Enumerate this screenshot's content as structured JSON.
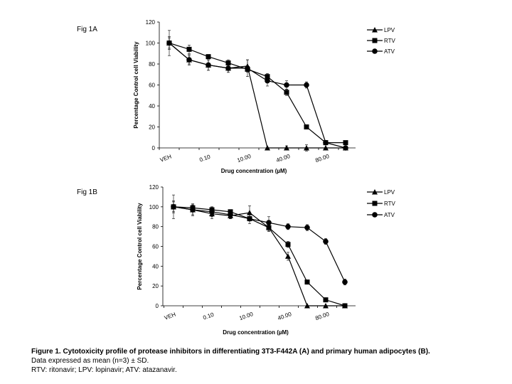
{
  "caption": {
    "title": "Figure 1. Cytotoxicity profile of protease inhibitors in differentiating 3T3-F442A (A) and primary human adipocytes (B).",
    "line2": "Data expressed as mean (n=3) ± SD.",
    "line3": "RTV: ritonavir; LPV: lopinavir; ATV: atazanavir."
  },
  "chart_data": [
    {
      "type": "line",
      "title": "Fig 1A",
      "xlabel": "Drug concentration (µM)",
      "ylabel": "Percentage Control cell Viability",
      "ylim": [
        0,
        120
      ],
      "yticks": [
        0,
        20,
        40,
        60,
        80,
        100,
        120
      ],
      "tick_labels": [
        "VEH",
        "0.10",
        "10.00",
        "40.00",
        "80.00"
      ],
      "tick_label_positions": [
        0,
        2,
        4,
        6,
        8
      ],
      "x_positions": [
        0,
        1,
        2,
        3,
        4,
        5,
        6,
        7,
        8,
        9
      ],
      "grid": false,
      "legend": "top-right",
      "series": [
        {
          "name": "LPV",
          "marker": "triangle",
          "values": [
            100,
            84,
            79,
            76,
            78,
            0,
            0,
            0,
            0,
            0
          ],
          "err": [
            5,
            5,
            5,
            4,
            6,
            0,
            2,
            3,
            0,
            0
          ]
        },
        {
          "name": "RTV",
          "marker": "square",
          "values": [
            100,
            94,
            87,
            81,
            75,
            68,
            53,
            20,
            5,
            5
          ],
          "err": [
            6,
            4,
            2,
            3,
            2,
            3,
            3,
            1,
            1,
            1
          ]
        },
        {
          "name": "ATV",
          "marker": "circle",
          "values": [
            100,
            84,
            79,
            76,
            76,
            64,
            60,
            60,
            5,
            0
          ],
          "err": [
            12,
            4,
            5,
            4,
            8,
            5,
            4,
            3,
            1,
            0
          ]
        }
      ]
    },
    {
      "type": "line",
      "title": "Fig 1B",
      "xlabel": "Drug concentration (µM)",
      "ylabel": "Percentage Control cell Viability",
      "ylim": [
        0,
        120
      ],
      "yticks": [
        0,
        20,
        40,
        60,
        80,
        100,
        120
      ],
      "tick_labels": [
        "VEH",
        "0.10",
        "10.00",
        "40.00",
        "80.00"
      ],
      "tick_label_positions": [
        0,
        2,
        4,
        6,
        8
      ],
      "x_positions": [
        0,
        1,
        2,
        3,
        4,
        5,
        6,
        7,
        8,
        9
      ],
      "grid": false,
      "legend": "top-right",
      "series": [
        {
          "name": "LPV",
          "marker": "triangle",
          "values": [
            100,
            97,
            93,
            91,
            94,
            79,
            50,
            0,
            0,
            0
          ],
          "err": [
            6,
            5,
            5,
            3,
            7,
            4,
            4,
            0,
            0,
            0
          ]
        },
        {
          "name": "RTV",
          "marker": "square",
          "values": [
            100,
            99,
            97,
            95,
            88,
            79,
            62,
            24,
            6,
            0
          ],
          "err": [
            5,
            3,
            3,
            2,
            2,
            3,
            3,
            1,
            1,
            0
          ]
        },
        {
          "name": "ATV",
          "marker": "circle",
          "values": [
            100,
            97,
            95,
            92,
            88,
            84,
            80,
            79,
            65,
            24
          ],
          "err": [
            12,
            6,
            5,
            4,
            5,
            6,
            3,
            3,
            3,
            3
          ]
        }
      ]
    }
  ]
}
